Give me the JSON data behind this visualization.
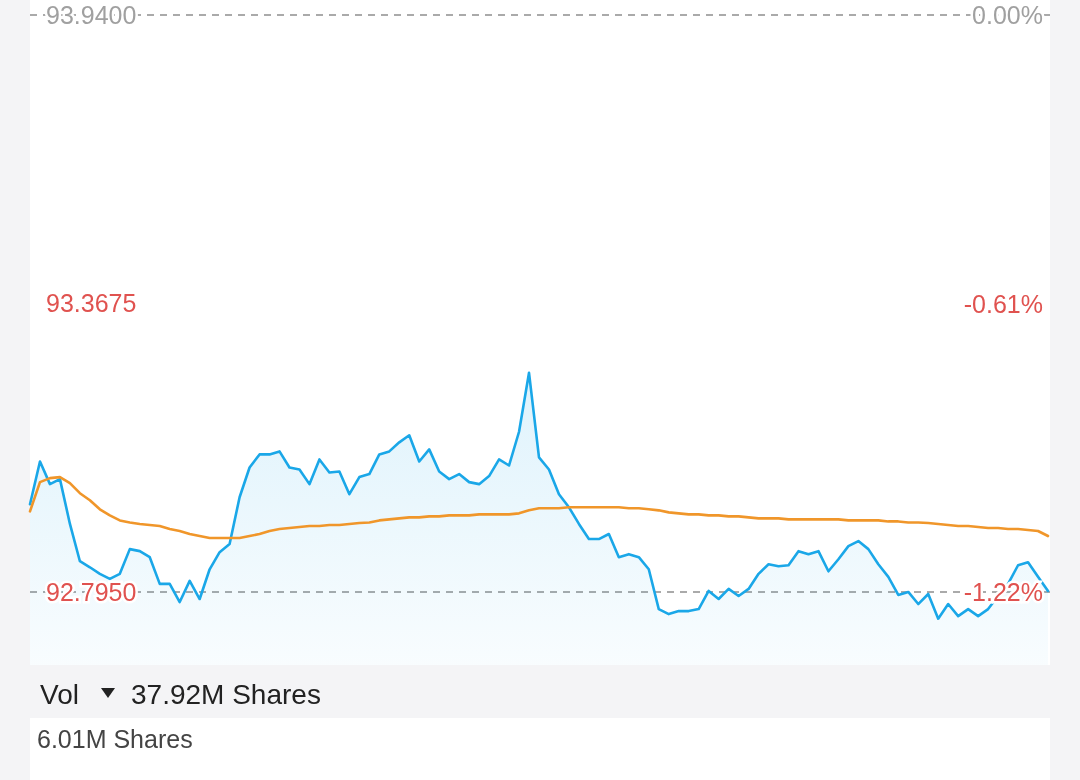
{
  "chart_data": {
    "type": "line",
    "categories": [
      null,
      null,
      null,
      null,
      null,
      null,
      null,
      null,
      null,
      null,
      null,
      null,
      null,
      null,
      null,
      null,
      null,
      null,
      null,
      null,
      null,
      null,
      null,
      null,
      null,
      null,
      null,
      null,
      null,
      null,
      null,
      null,
      null,
      null,
      null,
      null,
      null,
      null,
      null,
      null,
      null,
      null,
      null,
      null,
      null,
      null,
      null,
      null,
      null,
      null,
      null,
      null,
      null,
      null,
      null,
      null,
      null,
      null,
      null,
      null,
      null,
      null,
      null,
      null,
      null,
      null,
      null,
      null,
      null,
      null,
      null,
      null,
      null,
      null,
      null,
      null,
      null,
      null,
      null,
      null,
      null,
      null,
      null,
      null,
      null,
      null,
      null,
      null,
      null,
      null,
      null,
      null,
      null,
      null,
      null,
      null,
      null,
      null,
      null,
      null,
      null,
      null,
      null
    ],
    "series": [
      {
        "type": "area",
        "color": "#1aa7e8",
        "values": [
          92.969,
          93.054,
          93.009,
          93.019,
          92.93,
          92.856,
          92.844,
          92.831,
          92.821,
          92.831,
          92.88,
          92.876,
          92.864,
          92.811,
          92.811,
          92.775,
          92.817,
          92.781,
          92.84,
          92.874,
          92.89,
          92.983,
          93.042,
          93.068,
          93.068,
          93.074,
          93.042,
          93.038,
          93.009,
          93.058,
          93.032,
          93.034,
          92.989,
          93.023,
          93.029,
          93.068,
          93.074,
          93.092,
          93.106,
          93.054,
          93.078,
          93.034,
          93.019,
          93.029,
          93.013,
          93.009,
          93.025,
          93.058,
          93.046,
          93.113,
          93.23,
          93.062,
          93.038,
          92.989,
          92.963,
          92.93,
          92.9,
          92.9,
          92.91,
          92.864,
          92.87,
          92.864,
          92.84,
          92.761,
          92.751,
          92.757,
          92.757,
          92.761,
          92.797,
          92.781,
          92.801,
          92.787,
          92.801,
          92.831,
          92.85,
          92.846,
          92.848,
          92.876,
          92.87,
          92.876,
          92.836,
          92.86,
          92.886,
          92.896,
          92.88,
          92.85,
          92.825,
          92.789,
          92.795,
          92.771,
          92.791,
          92.742,
          92.771,
          92.747,
          92.761,
          92.747,
          92.761,
          92.787,
          92.811,
          92.848,
          92.854,
          92.825,
          92.797
        ]
      },
      {
        "type": "line",
        "color": "#f0962a",
        "values": [
          92.955,
          93.013,
          93.021,
          93.023,
          93.011,
          92.991,
          92.977,
          92.959,
          92.947,
          92.937,
          92.933,
          92.93,
          92.928,
          92.926,
          92.92,
          92.916,
          92.91,
          92.906,
          92.902,
          92.902,
          92.902,
          92.902,
          92.906,
          92.91,
          92.916,
          92.92,
          92.922,
          92.924,
          92.926,
          92.926,
          92.928,
          92.928,
          92.93,
          92.932,
          92.933,
          92.937,
          92.939,
          92.941,
          92.943,
          92.943,
          92.945,
          92.945,
          92.947,
          92.947,
          92.947,
          92.949,
          92.949,
          92.949,
          92.949,
          92.951,
          92.957,
          92.961,
          92.961,
          92.961,
          92.963,
          92.963,
          92.963,
          92.963,
          92.963,
          92.963,
          92.961,
          92.961,
          92.959,
          92.957,
          92.953,
          92.951,
          92.949,
          92.949,
          92.947,
          92.947,
          92.945,
          92.945,
          92.943,
          92.941,
          92.941,
          92.941,
          92.939,
          92.939,
          92.939,
          92.939,
          92.939,
          92.939,
          92.937,
          92.937,
          92.937,
          92.937,
          92.935,
          92.935,
          92.933,
          92.933,
          92.932,
          92.93,
          92.928,
          92.926,
          92.926,
          92.924,
          92.922,
          92.922,
          92.92,
          92.92,
          92.918,
          92.916,
          92.906
        ]
      }
    ],
    "ylim": [
      92.65,
      93.97
    ],
    "yticks": [
      {
        "value": 93.94,
        "label": "93.9400"
      },
      93.3675,
      {
        "value": 92.795,
        "label": "92.7950"
      }
    ],
    "y2lim": [
      -1.373,
      0.032
    ],
    "y2ticks": [
      {
        "value": 0,
        "label": "0.00%"
      },
      {
        "value": -0.61,
        "label": "-0.61%"
      },
      {
        "value": -1.22,
        "label": "-1.22%"
      }
    ],
    "ref_lines": [
      {
        "axis": "y",
        "value": 93.94,
        "color": "#aaaaaa",
        "line_style": "dashed"
      },
      {
        "axis": "y",
        "value": 92.795,
        "color": "#aaaaaa",
        "line_style": "dashed"
      }
    ],
    "annotations": [
      "Vol",
      "37.92M Shares",
      "6.01M Shares"
    ]
  }
}
